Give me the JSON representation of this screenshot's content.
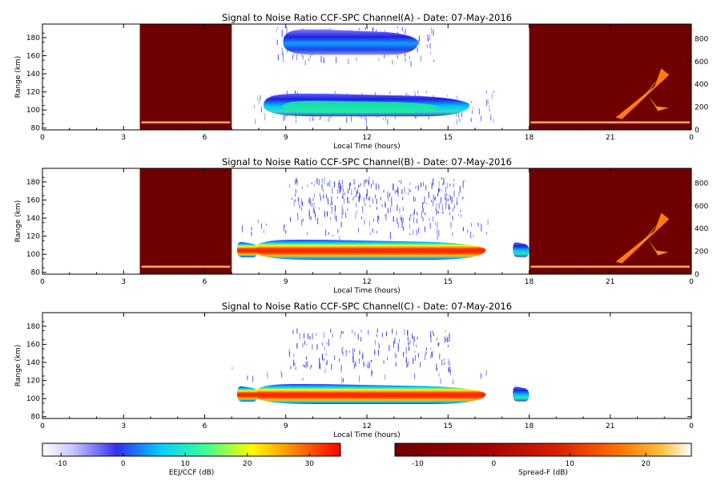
{
  "chart_data": [
    {
      "type": "heatmap",
      "title": "Signal to Noise Ratio CCF-SPC Channel(A) - Date: 07-May-2016",
      "xlabel": "Local Time (hours)",
      "ylabel": "Range (km)",
      "xlim": [
        0,
        24
      ],
      "ylim": [
        78,
        195
      ],
      "xticks": [
        "0",
        "3",
        "6",
        "9",
        "12",
        "15",
        "18",
        "21",
        "0"
      ],
      "yticks": [
        80,
        100,
        120,
        140,
        160,
        180
      ],
      "right_axis": {
        "ylim": [
          0,
          930
        ],
        "ticks": [
          0,
          200,
          400,
          600,
          800
        ]
      },
      "night_windows_hours": [
        [
          3.6,
          7.0
        ],
        [
          18.0,
          24.0
        ]
      ],
      "spread_f_layers": [
        {
          "x": [
            3.6,
            7.0
          ],
          "height": 62
        },
        {
          "x": [
            18.0,
            24.0
          ],
          "height": 62
        }
      ],
      "spread_f_plume": {
        "x": [
          21.2,
          23.3
        ],
        "height": [
          180,
          540
        ]
      },
      "echo_regions": [
        {
          "x": [
            8.9,
            13.9
          ],
          "range_km": [
            161,
            189
          ],
          "snr_db": [
            -8,
            2
          ]
        },
        {
          "x": [
            8.0,
            15.8
          ],
          "range_km": [
            93,
            118
          ],
          "snr_db": [
            -10,
            12
          ]
        }
      ]
    },
    {
      "type": "heatmap",
      "title": "Signal to Noise Ratio CCF-SPC Channel(B) - Date: 07-May-2016",
      "xlabel": "Local Time (hours)",
      "ylabel": "Range (km)",
      "xlim": [
        0,
        24
      ],
      "ylim": [
        78,
        195
      ],
      "xticks": [
        "0",
        "3",
        "6",
        "9",
        "12",
        "15",
        "18",
        "21",
        "0"
      ],
      "yticks": [
        80,
        100,
        120,
        140,
        160,
        180
      ],
      "right_axis": {
        "ylim": [
          0,
          930
        ],
        "ticks": [
          0,
          200,
          400,
          600,
          800
        ]
      },
      "night_windows_hours": [
        [
          3.6,
          7.0
        ],
        [
          18.0,
          24.0
        ]
      ],
      "spread_f_layers": [
        {
          "x": [
            3.6,
            7.0
          ],
          "height": 62
        },
        {
          "x": [
            18.0,
            24.0
          ],
          "height": 62
        }
      ],
      "spread_f_plume": {
        "x": [
          21.2,
          23.3
        ],
        "height": [
          180,
          540
        ]
      },
      "echo_regions": [
        {
          "x": [
            7.2,
            16.4
          ],
          "range_km": [
            94,
            116
          ],
          "snr_db": [
            0,
            32
          ]
        },
        {
          "x": [
            10.0,
            15.0
          ],
          "range_km": [
            145,
            168
          ],
          "snr_db": [
            -10,
            -2
          ]
        },
        {
          "x": [
            17.4,
            18.0
          ],
          "range_km": [
            97,
            113
          ],
          "snr_db": [
            -5,
            10
          ]
        }
      ]
    },
    {
      "type": "heatmap",
      "title": "Signal to Noise Ratio CCF-SPC Channel(C) - Date: 07-May-2016",
      "xlabel": "Local Time (hours)",
      "ylabel": "Range (km)",
      "xlim": [
        0,
        24
      ],
      "ylim": [
        78,
        195
      ],
      "xticks": [
        "0",
        "3",
        "6",
        "9",
        "12",
        "15",
        "18",
        "21",
        "0"
      ],
      "yticks": [
        80,
        100,
        120,
        140,
        160,
        180
      ],
      "echo_regions": [
        {
          "x": [
            7.2,
            16.4
          ],
          "range_km": [
            94,
            116
          ],
          "snr_db": [
            0,
            32
          ]
        },
        {
          "x": [
            10.0,
            14.5
          ],
          "range_km": [
            142,
            160
          ],
          "snr_db": [
            -10,
            -2
          ]
        },
        {
          "x": [
            17.4,
            18.0
          ],
          "range_km": [
            97,
            113
          ],
          "snr_db": [
            -5,
            10
          ]
        }
      ]
    }
  ],
  "colorbars": [
    {
      "name": "snr",
      "label": "EEJ/CCF (dB)",
      "range": [
        -13,
        35
      ],
      "ticks": [
        -10,
        0,
        10,
        20,
        30
      ],
      "stops": [
        "#ffffff",
        "#c8c8ff",
        "#3030f0",
        "#00d0ff",
        "#40ff90",
        "#ffff00",
        "#ff8000",
        "#ff0000"
      ]
    },
    {
      "name": "spreadf",
      "label": "Spread-F (dB)",
      "range": [
        -13,
        26
      ],
      "ticks": [
        -10,
        0,
        10,
        20
      ],
      "stops": [
        "#6e0000",
        "#a00000",
        "#d82000",
        "#ff7000",
        "#ffc040",
        "#ffffff"
      ]
    }
  ]
}
